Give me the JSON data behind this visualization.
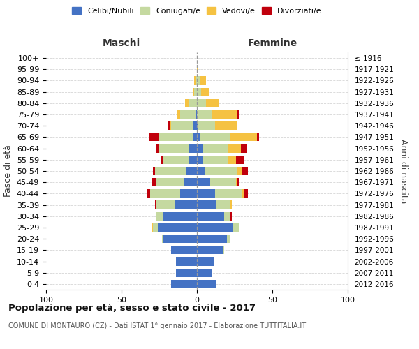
{
  "age_groups": [
    "100+",
    "95-99",
    "90-94",
    "85-89",
    "80-84",
    "75-79",
    "70-74",
    "65-69",
    "60-64",
    "55-59",
    "50-54",
    "45-49",
    "40-44",
    "35-39",
    "30-34",
    "25-29",
    "20-24",
    "15-19",
    "10-14",
    "5-9",
    "0-4"
  ],
  "birth_years": [
    "≤ 1916",
    "1917-1921",
    "1922-1926",
    "1927-1931",
    "1932-1936",
    "1937-1941",
    "1942-1946",
    "1947-1951",
    "1952-1956",
    "1957-1961",
    "1962-1966",
    "1967-1971",
    "1972-1976",
    "1977-1981",
    "1982-1986",
    "1987-1991",
    "1992-1996",
    "1997-2001",
    "2002-2006",
    "2007-2011",
    "2012-2016"
  ],
  "colors": {
    "celibi": "#4472C4",
    "coniugati": "#c5d9a0",
    "vedovi": "#f5c242",
    "divorziati": "#c0000c"
  },
  "maschi": {
    "celibi": [
      0,
      0,
      0,
      0,
      0,
      1,
      3,
      3,
      5,
      5,
      7,
      9,
      11,
      15,
      22,
      26,
      22,
      17,
      14,
      14,
      17
    ],
    "coniugati": [
      0,
      0,
      1,
      2,
      5,
      10,
      14,
      22,
      20,
      17,
      21,
      18,
      20,
      12,
      5,
      3,
      1,
      0,
      0,
      0,
      0
    ],
    "vedovi": [
      0,
      0,
      1,
      1,
      3,
      2,
      1,
      0,
      0,
      0,
      0,
      0,
      0,
      0,
      0,
      1,
      0,
      0,
      0,
      0,
      0
    ],
    "divorziati": [
      0,
      0,
      0,
      0,
      0,
      0,
      1,
      7,
      2,
      2,
      1,
      3,
      2,
      1,
      0,
      0,
      0,
      0,
      0,
      0,
      0
    ]
  },
  "femmine": {
    "celibi": [
      0,
      0,
      0,
      0,
      0,
      0,
      1,
      2,
      4,
      4,
      5,
      9,
      12,
      13,
      18,
      24,
      20,
      17,
      11,
      10,
      13
    ],
    "coniugati": [
      0,
      0,
      2,
      3,
      6,
      10,
      11,
      20,
      17,
      17,
      22,
      17,
      18,
      9,
      4,
      4,
      2,
      1,
      0,
      0,
      0
    ],
    "vedovi": [
      0,
      1,
      4,
      5,
      9,
      17,
      15,
      18,
      8,
      5,
      3,
      1,
      1,
      1,
      0,
      0,
      0,
      0,
      0,
      0,
      0
    ],
    "divorziati": [
      0,
      0,
      0,
      0,
      0,
      1,
      0,
      1,
      4,
      5,
      4,
      1,
      3,
      0,
      1,
      0,
      0,
      0,
      0,
      0,
      0
    ]
  },
  "xlim": 100,
  "title": "Popolazione per età, sesso e stato civile - 2017",
  "subtitle": "COMUNE DI MONTAURO (CZ) - Dati ISTAT 1° gennaio 2017 - Elaborazione TUTTITALIA.IT",
  "ylabel_left": "Fasce di età",
  "ylabel_right": "Anni di nascita",
  "xlabel_maschi": "Maschi",
  "xlabel_femmine": "Femmine",
  "legend_labels": [
    "Celibi/Nubili",
    "Coniugati/e",
    "Vedovi/e",
    "Divorziati/e"
  ],
  "legend_colors": [
    "#4472C4",
    "#c5d9a0",
    "#f5c242",
    "#c0000c"
  ],
  "bg_color": "#ffffff",
  "grid_color": "#cccccc"
}
